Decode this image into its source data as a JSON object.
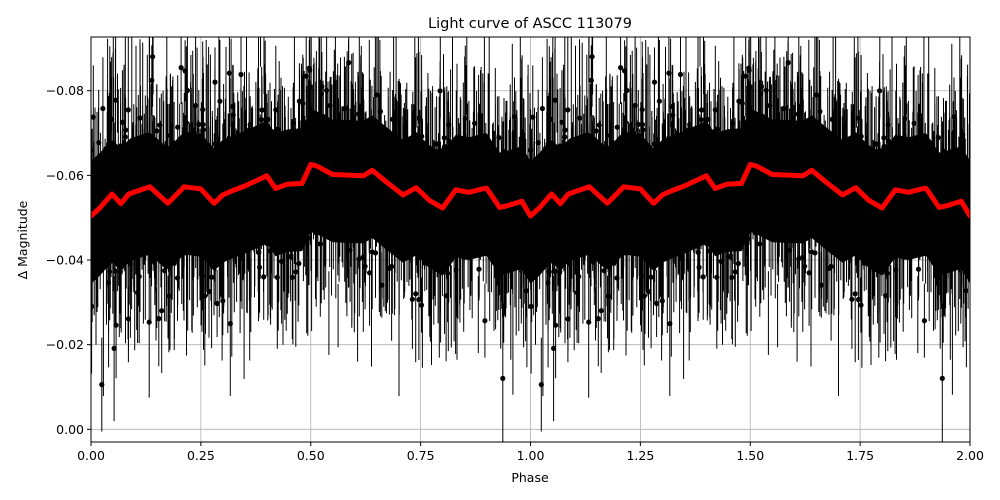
{
  "figure": {
    "title": "Light curve of ASCC 113079",
    "xlabel": "Phase",
    "ylabel": "Δ Magnitude"
  },
  "chart_data": {
    "type": "scatter",
    "title": "Light curve of ASCC 113079",
    "xlabel": "Phase",
    "ylabel": "Δ Magnitude",
    "xlim": [
      0.0,
      2.0
    ],
    "ylim": [
      0.003,
      -0.0927
    ],
    "y_inverted": true,
    "grid": true,
    "legend": null,
    "xticks": [
      "0.00",
      "0.25",
      "0.50",
      "0.75",
      "1.00",
      "1.25",
      "1.50",
      "1.75",
      "2.00"
    ],
    "xtick_values": [
      0.0,
      0.25,
      0.5,
      0.75,
      1.0,
      1.25,
      1.5,
      1.75,
      2.0
    ],
    "yticks": [
      "−0.08",
      "−0.06",
      "−0.04",
      "−0.02",
      "0.00"
    ],
    "ytick_values": [
      -0.08,
      -0.06,
      -0.04,
      -0.02,
      0.0
    ],
    "series": [
      {
        "name": "observations",
        "kind": "errorbar",
        "color": "#000000",
        "description": "Dense phase-folded photometry with error bars, repeated over two phase cycles; bulk scatter spans roughly -0.075 to -0.03 with outliers from about -0.093 to 0.003",
        "approx_center": -0.057,
        "approx_band": [
          -0.075,
          -0.03
        ]
      },
      {
        "name": "binned mean",
        "kind": "line",
        "color": "#ff0000",
        "period_phase": 1.0,
        "phase": [
          0.0,
          0.02,
          0.048,
          0.068,
          0.086,
          0.134,
          0.175,
          0.212,
          0.25,
          0.28,
          0.3,
          0.32,
          0.35,
          0.4,
          0.42,
          0.446,
          0.48,
          0.5,
          0.514,
          0.55,
          0.6,
          0.62,
          0.64,
          0.67,
          0.71,
          0.74,
          0.77,
          0.8,
          0.83,
          0.86,
          0.89,
          0.9,
          0.93,
          0.95,
          0.98,
          1.0
        ],
        "values": [
          -0.0504,
          -0.0523,
          -0.0556,
          -0.0533,
          -0.0556,
          -0.0573,
          -0.0534,
          -0.0573,
          -0.0568,
          -0.0534,
          -0.0554,
          -0.0563,
          -0.0575,
          -0.0599,
          -0.0569,
          -0.0579,
          -0.0581,
          -0.0626,
          -0.0622,
          -0.0602,
          -0.06,
          -0.0599,
          -0.0612,
          -0.0586,
          -0.0554,
          -0.0571,
          -0.0541,
          -0.0523,
          -0.0566,
          -0.056,
          -0.0568,
          -0.057,
          -0.0524,
          -0.0529,
          -0.0539,
          -0.0504
        ]
      }
    ]
  }
}
